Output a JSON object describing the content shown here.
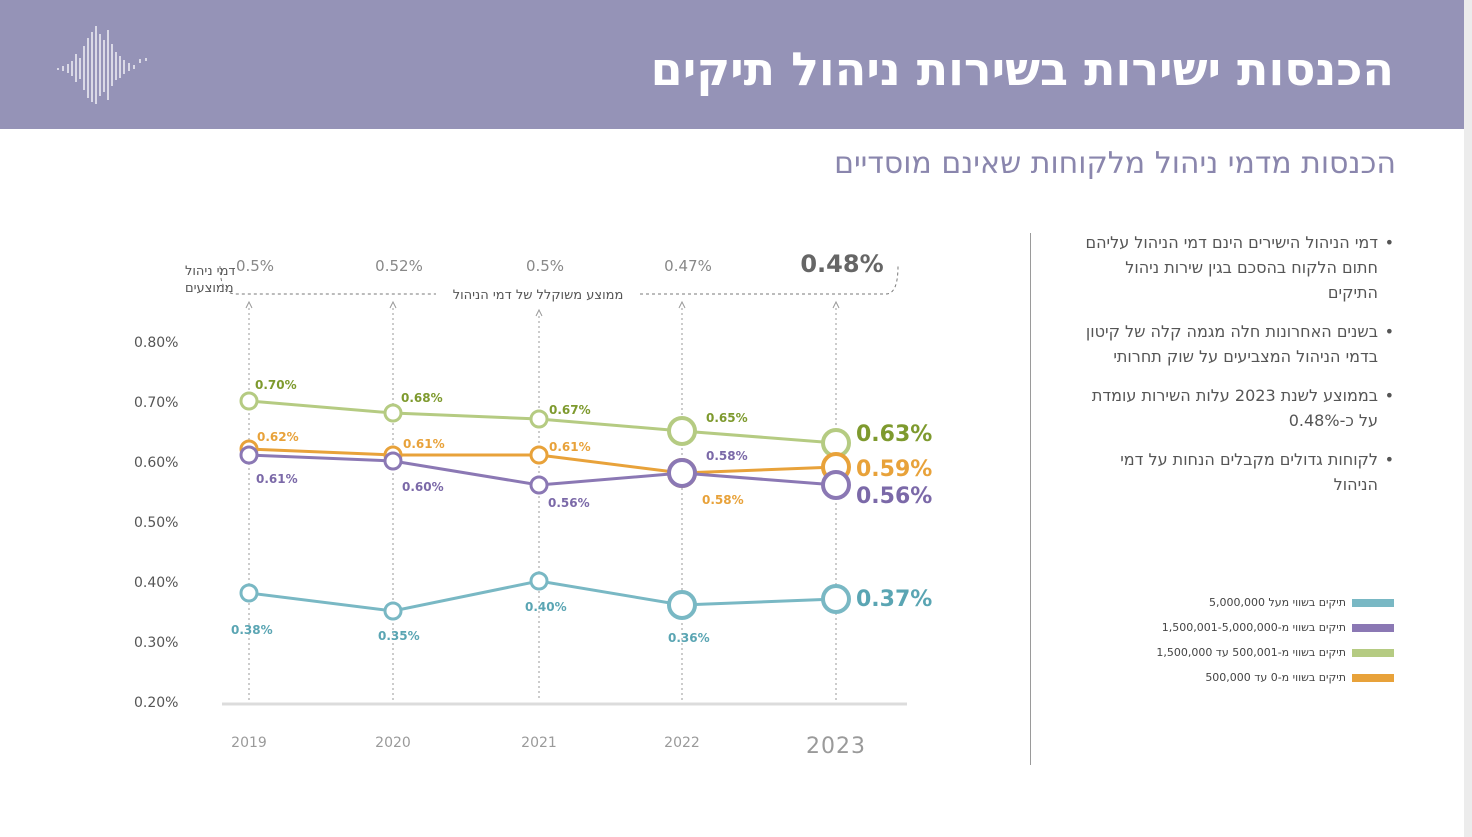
{
  "header": {
    "title": "הכנסות ישירות בשירות ניהול תיקים",
    "subtitle": "הכנסות מדמי ניהול מלקוחות שאינם מוסדיים"
  },
  "bullets": [
    "דמי הניהול הישירים הינם דמי הניהול עליהם חתום הלקוח בהסכם בגין שירות ניהול התיקים",
    "בשנים האחרונות חלה מגמה קלה של קיטון בדמי הניהול המצביעים על שוק תחרותי",
    "בממוצע לשנת 2023 עלות השירות עומדת על כ-0.48%",
    "לקוחות גדולים מקבלים הנחות על דמי הניהול"
  ],
  "legend": [
    {
      "label": "תיקים בשווי מעל 5,000,000",
      "color": "#79b8c4"
    },
    {
      "label": "תיקים בשווי מ-1,500,001-5,000,000",
      "color": "#8b78b4"
    },
    {
      "label": "תיקים בשווי מ-500,001 עד 1,500,000",
      "color": "#b5cb82"
    },
    {
      "label": "תיקים בשווי מ-0 עד 500,000",
      "color": "#e8a23a"
    }
  ],
  "chart_data": {
    "type": "line",
    "ylabel_line1": "דמי ניהול",
    "ylabel_line2": "ממוצעים",
    "x": [
      "2019",
      "2020",
      "2021",
      "2022",
      "2023"
    ],
    "y_ticks": [
      "0.80%",
      "0.70%",
      "0.60%",
      "0.50%",
      "0.40%",
      "0.30%",
      "0.20%"
    ],
    "ylim": [
      0.2,
      0.8
    ],
    "avg_label": "ממוצע משוקלל של דמי הניהול",
    "avg_values": [
      "0.5%",
      "0.52%",
      "0.5%",
      "0.47%",
      "0.48%"
    ],
    "series": [
      {
        "values": [
          0.7,
          0.68,
          0.67,
          0.65,
          0.63
        ],
        "labels": [
          "0.70%",
          "0.68%",
          "0.67%",
          "0.65%",
          "0.63%"
        ],
        "color": "#b5cb82",
        "label_color": "#7e9a2e"
      },
      {
        "values": [
          0.62,
          0.61,
          0.61,
          0.58,
          0.59
        ],
        "labels": [
          "0.62%",
          "0.61%",
          "0.61%",
          "0.58%",
          "0.59%"
        ],
        "color": "#e8a23a",
        "label_color": "#e8a23a"
      },
      {
        "values": [
          0.61,
          0.6,
          0.56,
          0.58,
          0.56
        ],
        "labels": [
          "0.61%",
          "0.60%",
          "0.56%",
          "0.58%",
          "0.56%"
        ],
        "color": "#8b78b4",
        "label_color": "#7b69a8"
      },
      {
        "values": [
          0.38,
          0.35,
          0.4,
          0.36,
          0.37
        ],
        "labels": [
          "0.38%",
          "0.35%",
          "0.40%",
          "0.36%",
          "0.37%"
        ],
        "color": "#79b8c4",
        "label_color": "#5aa5b3"
      }
    ]
  }
}
